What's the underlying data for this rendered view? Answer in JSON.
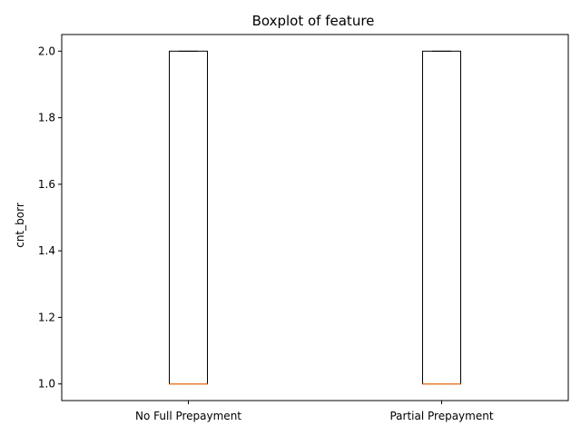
{
  "chart_data": {
    "type": "boxplot",
    "title": "Boxplot of feature",
    "xlabel": "",
    "ylabel": "cnt_borr",
    "ylim": [
      0.95,
      2.05
    ],
    "yticks": [
      1.0,
      1.2,
      1.4,
      1.6,
      1.8,
      2.0
    ],
    "ytick_labels": [
      "1.0",
      "1.2",
      "1.4",
      "1.6",
      "1.8",
      "2.0"
    ],
    "categories": [
      "No Full Prepayment",
      "Partial Prepayment"
    ],
    "boxes": [
      {
        "category": "No Full Prepayment",
        "whisker_low": 1.0,
        "q1": 1.0,
        "median": 1.0,
        "q3": 2.0,
        "whisker_high": 2.0
      },
      {
        "category": "Partial Prepayment",
        "whisker_low": 1.0,
        "q1": 1.0,
        "median": 1.0,
        "q3": 2.0,
        "whisker_high": 2.0
      }
    ],
    "colors": {
      "box": "#000000",
      "median": "#e8823a",
      "axes": "#000000"
    },
    "grid": false,
    "legend": "none"
  }
}
